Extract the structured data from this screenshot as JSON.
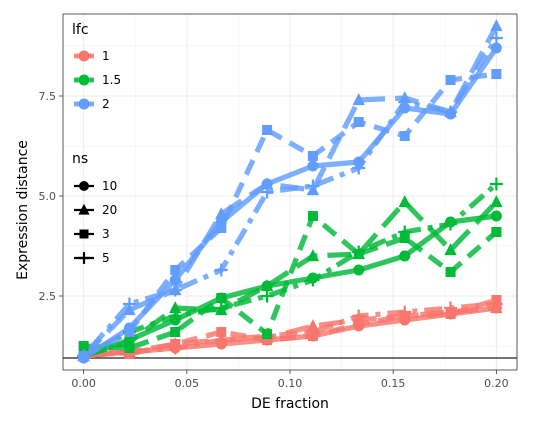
{
  "chart_data": {
    "type": "line",
    "xlabel": "DE fraction",
    "ylabel": "Expression distance",
    "xlim": [
      -0.01,
      0.21
    ],
    "ylim": [
      0.65,
      9.55
    ],
    "x_ticks": [
      0.0,
      0.05,
      0.1,
      0.15,
      0.2
    ],
    "x_tick_labels": [
      "0.00",
      "0.05",
      "0.10",
      "0.15",
      "0.20"
    ],
    "y_ticks": [
      2.5,
      5.0,
      7.5
    ],
    "y_tick_labels": [
      "2.5",
      "5.0",
      "7.5"
    ],
    "hline": 0.95,
    "grid": true,
    "legend_position": "left-inside",
    "colors": {
      "1": "#F8766D",
      "1.5": "#00BA38",
      "2": "#619CFF"
    },
    "legend": {
      "lfc_title": "lfc",
      "lfc_items": [
        {
          "label": "1",
          "key": "1"
        },
        {
          "label": "1.5",
          "key": "1.5"
        },
        {
          "label": "2",
          "key": "2"
        }
      ],
      "ns_title": "ns",
      "ns_items": [
        {
          "label": "10",
          "shape": "circle"
        },
        {
          "label": "20",
          "shape": "triangle"
        },
        {
          "label": "3",
          "shape": "square"
        },
        {
          "label": "5",
          "shape": "plus"
        }
      ]
    },
    "x": [
      0.0,
      0.0222,
      0.0444,
      0.0667,
      0.0889,
      0.1111,
      0.1333,
      0.1556,
      0.1778,
      0.2
    ],
    "series": [
      {
        "lfc": "1",
        "ns": "10",
        "shape": "circle",
        "dash": "solid",
        "values": [
          1.0,
          1.1,
          1.2,
          1.3,
          1.4,
          1.5,
          1.75,
          1.9,
          2.05,
          2.2
        ]
      },
      {
        "lfc": "1",
        "ns": "20",
        "shape": "triangle",
        "dash": "longdash",
        "values": [
          1.0,
          1.1,
          1.3,
          1.4,
          1.45,
          1.75,
          1.9,
          2.0,
          2.1,
          2.2
        ]
      },
      {
        "lfc": "1",
        "ns": "3",
        "shape": "square",
        "dash": "dashed",
        "values": [
          1.2,
          1.05,
          1.3,
          1.6,
          1.4,
          1.5,
          1.8,
          2.0,
          2.05,
          2.4
        ]
      },
      {
        "lfc": "1",
        "ns": "5",
        "shape": "plus",
        "dash": "dotdash",
        "values": [
          1.0,
          1.1,
          1.2,
          1.4,
          1.5,
          1.6,
          2.0,
          2.1,
          2.2,
          2.3
        ]
      },
      {
        "lfc": "1.5",
        "ns": "10",
        "shape": "circle",
        "dash": "solid",
        "values": [
          1.0,
          1.4,
          1.9,
          2.45,
          2.75,
          2.95,
          3.15,
          3.5,
          4.35,
          4.5
        ]
      },
      {
        "lfc": "1.5",
        "ns": "20",
        "shape": "triangle",
        "dash": "longdash",
        "values": [
          1.0,
          1.35,
          2.2,
          2.15,
          2.75,
          3.5,
          3.55,
          4.85,
          3.65,
          4.85
        ]
      },
      {
        "lfc": "1.5",
        "ns": "3",
        "shape": "square",
        "dash": "dashed",
        "values": [
          1.25,
          1.2,
          1.6,
          2.45,
          1.55,
          4.5,
          3.55,
          3.95,
          3.1,
          4.1
        ]
      },
      {
        "lfc": "1.5",
        "ns": "5",
        "shape": "plus",
        "dash": "dotdash",
        "values": [
          1.0,
          1.6,
          2.0,
          2.2,
          2.5,
          2.9,
          3.6,
          4.1,
          4.3,
          5.3
        ]
      },
      {
        "lfc": "2",
        "ns": "10",
        "shape": "circle",
        "dash": "solid",
        "values": [
          0.95,
          1.7,
          2.9,
          4.35,
          5.3,
          5.75,
          5.85,
          7.2,
          7.05,
          8.7
        ]
      },
      {
        "lfc": "2",
        "ns": "20",
        "shape": "triangle",
        "dash": "longdash",
        "values": [
          1.0,
          2.15,
          2.65,
          4.55,
          5.3,
          5.15,
          7.4,
          7.45,
          7.1,
          9.25
        ]
      },
      {
        "lfc": "2",
        "ns": "3",
        "shape": "square",
        "dash": "dashed",
        "values": [
          1.0,
          1.6,
          3.15,
          4.2,
          6.65,
          6.0,
          6.85,
          6.5,
          7.9,
          8.05
        ]
      },
      {
        "lfc": "2",
        "ns": "5",
        "shape": "plus",
        "dash": "dotdash",
        "values": [
          1.0,
          2.3,
          2.65,
          3.15,
          5.1,
          5.25,
          5.7,
          7.35,
          7.1,
          8.95
        ]
      }
    ]
  }
}
